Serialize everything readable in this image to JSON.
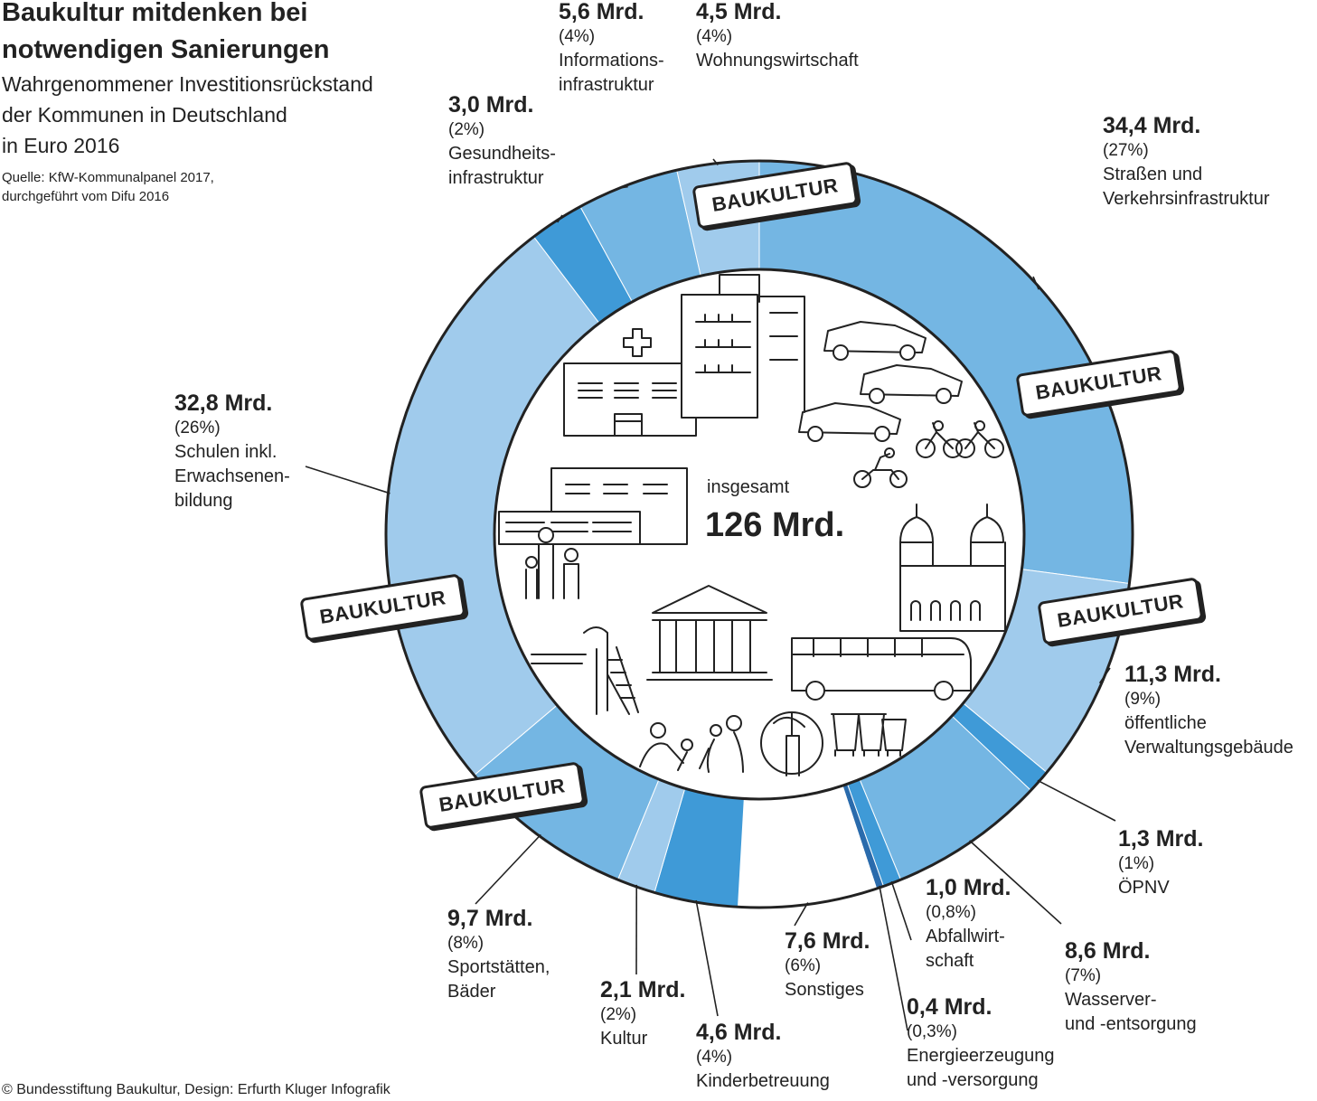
{
  "title_lines": [
    "Baukultur mitdenken bei",
    "notwendigen Sanierungen"
  ],
  "subtitle_lines": [
    "Wahrgenommener Investitionsrückstand",
    "der Kommunen in Deutschland",
    "in Euro 2016"
  ],
  "source_lines": [
    "Quelle: KfW-Kommunalpanel 2017,",
    "durchgeführt vom Difu 2016"
  ],
  "footer": "© Bundesstiftung Baukultur, Design: Erfurth Kluger Infografik",
  "total": {
    "caption": "insgesamt",
    "value": "126 Mrd."
  },
  "tag_text": "BAUKULTUR",
  "colors": {
    "mid": "#74b6e3",
    "light": "#a0cbec",
    "accent": "#3f9ad7",
    "dark": "#2a6bac",
    "none": "#ffffff",
    "stroke": "#222222"
  },
  "chart_data": {
    "type": "pie",
    "unit": "Mrd. Euro",
    "total": 126,
    "slices": [
      {
        "label": "Straßen und Verkehrsinfrastruktur",
        "value": 34.4,
        "percent": "27%",
        "color": "mid"
      },
      {
        "label": "öffentliche Verwaltungsgebäude",
        "value": 11.3,
        "percent": "9%",
        "color": "light"
      },
      {
        "label": "ÖPNV",
        "value": 1.3,
        "percent": "1%",
        "color": "accent"
      },
      {
        "label": "Wasserver- und -entsorgung",
        "value": 8.6,
        "percent": "7%",
        "color": "mid"
      },
      {
        "label": "Abfallwirtschaft",
        "value": 1.0,
        "percent": "0,8%",
        "color": "accent"
      },
      {
        "label": "Energieerzeugung und -versorgung",
        "value": 0.4,
        "percent": "0,3%",
        "color": "dark"
      },
      {
        "label": "Sonstiges",
        "value": 7.6,
        "percent": "6%",
        "color": "none"
      },
      {
        "label": "Kinderbetreuung",
        "value": 4.6,
        "percent": "4%",
        "color": "accent"
      },
      {
        "label": "Kultur",
        "value": 2.1,
        "percent": "2%",
        "color": "light"
      },
      {
        "label": "Sportstätten, Bäder",
        "value": 9.7,
        "percent": "8%",
        "color": "mid"
      },
      {
        "label": "Schulen inkl. Erwachsenenbildung",
        "value": 32.8,
        "percent": "26%",
        "color": "light"
      },
      {
        "label": "Gesundheitsinfrastruktur",
        "value": 3.0,
        "percent": "2%",
        "color": "accent"
      },
      {
        "label": "Informationsinfrastruktur",
        "value": 5.6,
        "percent": "4%",
        "color": "mid"
      },
      {
        "label": "Wohnungswirtschaft",
        "value": 4.5,
        "percent": "4%",
        "color": "light"
      }
    ]
  },
  "labels": [
    {
      "amount": "34,4 Mrd.",
      "pct": "(27%)",
      "lines": [
        "Straßen und",
        "Verkehrsinfrastruktur"
      ]
    },
    {
      "amount": "11,3 Mrd.",
      "pct": "(9%)",
      "lines": [
        "öffentliche",
        "Verwaltungsgebäude"
      ]
    },
    {
      "amount": "1,3 Mrd.",
      "pct": "(1%)",
      "lines": [
        "ÖPNV"
      ]
    },
    {
      "amount": "8,6 Mrd.",
      "pct": "(7%)",
      "lines": [
        "Wasserver-",
        "und -entsorgung"
      ]
    },
    {
      "amount": "1,0 Mrd.",
      "pct": "(0,8%)",
      "lines": [
        "Abfallwirt-",
        "schaft"
      ]
    },
    {
      "amount": "0,4 Mrd.",
      "pct": "(0,3%)",
      "lines": [
        "Energieerzeugung",
        "und -versorgung"
      ]
    },
    {
      "amount": "7,6 Mrd.",
      "pct": "(6%)",
      "lines": [
        "Sonstiges"
      ]
    },
    {
      "amount": "4,6 Mrd.",
      "pct": "(4%)",
      "lines": [
        "Kinderbetreuung"
      ]
    },
    {
      "amount": "2,1 Mrd.",
      "pct": "(2%)",
      "lines": [
        "Kultur"
      ]
    },
    {
      "amount": "9,7 Mrd.",
      "pct": "(8%)",
      "lines": [
        "Sportstätten,",
        "Bäder"
      ]
    },
    {
      "amount": "32,8 Mrd.",
      "pct": "(26%)",
      "lines": [
        "Schulen inkl.",
        "Erwachsenen-",
        "bildung"
      ]
    },
    {
      "amount": "3,0 Mrd.",
      "pct": "(2%)",
      "lines": [
        "Gesundheits-",
        "infrastruktur"
      ]
    },
    {
      "amount": "5,6 Mrd.",
      "pct": "(4%)",
      "lines": [
        "Informations-",
        "infrastruktur"
      ]
    },
    {
      "amount": "4,5 Mrd.",
      "pct": "(4%)",
      "lines": [
        "Wohnungswirtschaft"
      ]
    }
  ],
  "icons": [
    "hospital-icon",
    "apartment-buildings-icon",
    "cars-icon",
    "cyclists-icon",
    "motorcycle-icon",
    "school-icon",
    "people-icon",
    "church-icon",
    "museum-icon",
    "bus-icon",
    "playground-slide-icon",
    "childcare-icon",
    "fountain-icon",
    "waste-bins-icon"
  ]
}
